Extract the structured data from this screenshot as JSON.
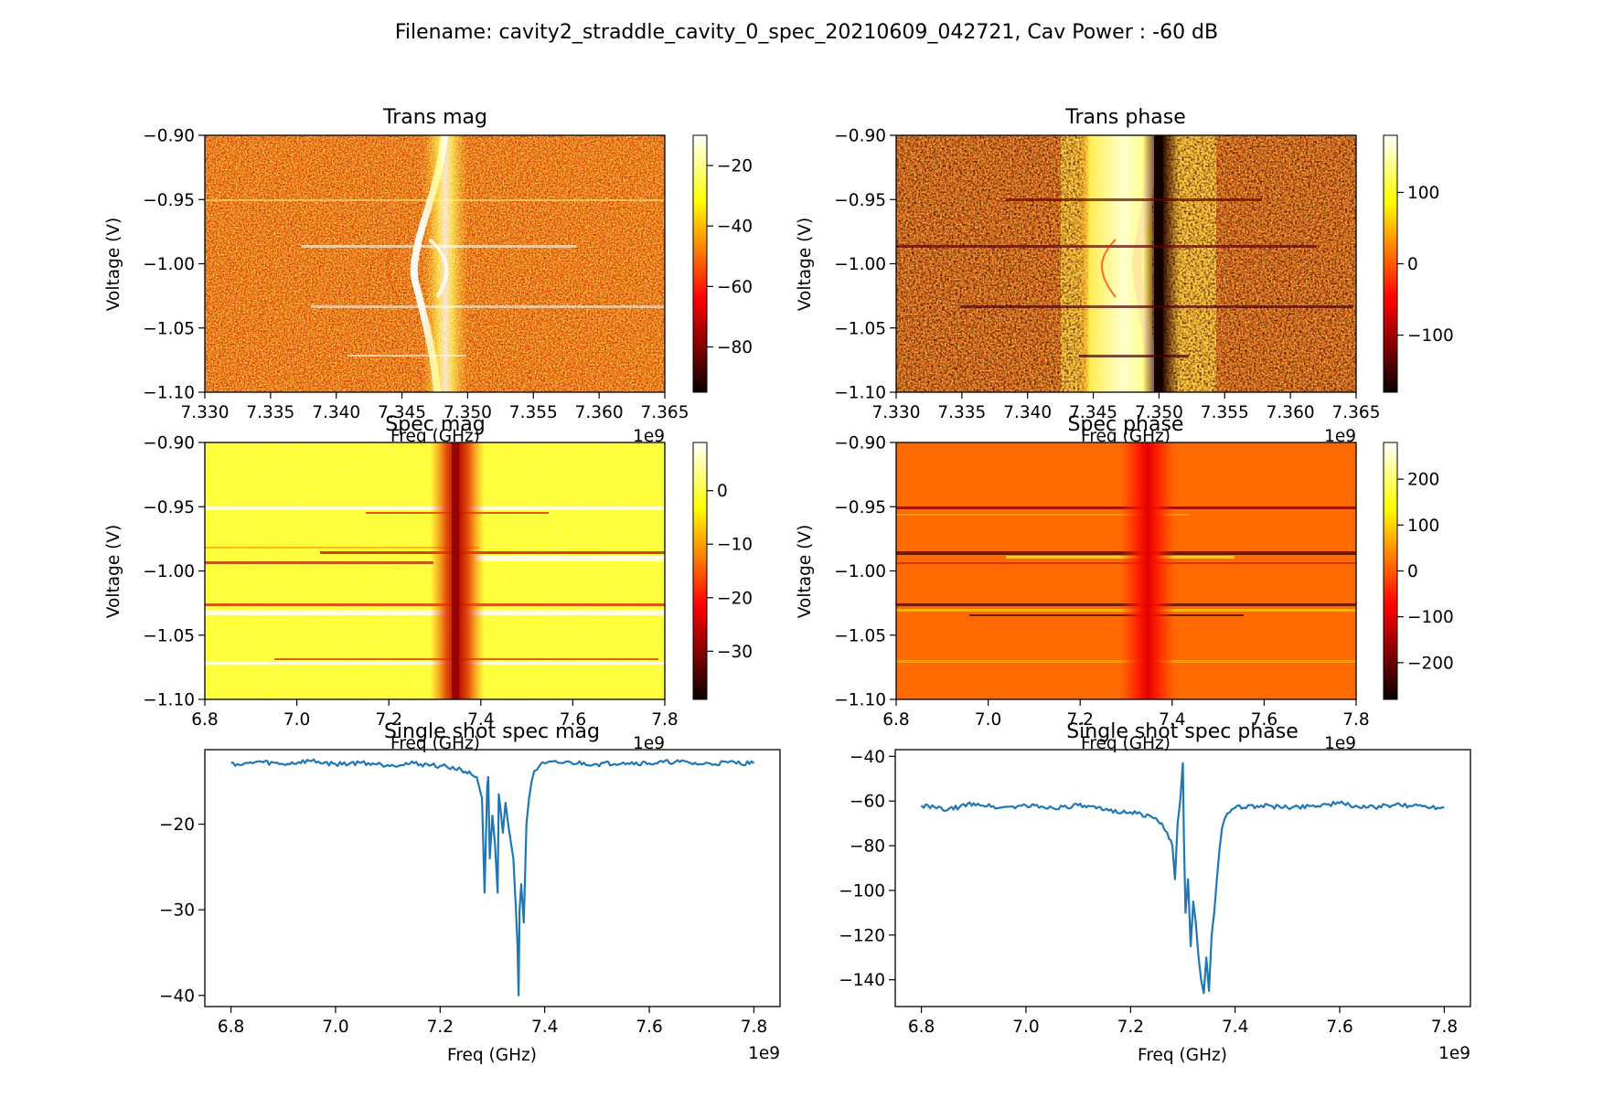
{
  "figure": {
    "suptitle": "Filename: cavity2_straddle_cavity_0_spec_20210609_042721, Cav Power : -60 dB"
  },
  "chart_data": [
    {
      "type": "heatmap",
      "title": "Trans mag",
      "xlabel": "Freq (GHz)",
      "ylabel": "Voltage (V)",
      "x_offset_label": "1e9",
      "xlim": [
        7330000000.0,
        7365000000.0
      ],
      "ylim": [
        -1.1,
        -0.9
      ],
      "xticks": [
        7.33,
        7.335,
        7.34,
        7.345,
        7.35,
        7.355,
        7.36,
        7.365
      ],
      "xtick_labels": [
        "7.330",
        "7.335",
        "7.340",
        "7.345",
        "7.350",
        "7.355",
        "7.360",
        "7.365"
      ],
      "yticks": [
        -0.9,
        -0.95,
        -1.0,
        -1.05,
        -1.1
      ],
      "ytick_labels": [
        "−0.90",
        "−0.95",
        "−1.00",
        "−1.05",
        "−1.10"
      ],
      "colormap": "hot",
      "colorbar": {
        "vmin": -95,
        "vmax": -10,
        "ticks": [
          -20,
          -40,
          -60,
          -80
        ],
        "tick_labels": [
          "−20",
          "−40",
          "−60",
          "−80"
        ]
      },
      "features": {
        "resonance_center_ghz": 7.348,
        "anticrossing_voltages": [
          -0.95,
          -0.987,
          -1.0,
          -1.033,
          -1.072
        ],
        "background": "noisy orange"
      }
    },
    {
      "type": "heatmap",
      "title": "Trans phase",
      "xlabel": "Freq (GHz)",
      "ylabel": "Voltage (V)",
      "x_offset_label": "1e9",
      "xlim": [
        7330000000.0,
        7365000000.0
      ],
      "ylim": [
        -1.1,
        -0.9
      ],
      "xticks": [
        7.33,
        7.335,
        7.34,
        7.345,
        7.35,
        7.355,
        7.36,
        7.365
      ],
      "xtick_labels": [
        "7.330",
        "7.335",
        "7.340",
        "7.345",
        "7.350",
        "7.355",
        "7.360",
        "7.365"
      ],
      "yticks": [
        -0.9,
        -0.95,
        -1.0,
        -1.05,
        -1.1
      ],
      "ytick_labels": [
        "−0.90",
        "−0.95",
        "−1.00",
        "−1.05",
        "−1.10"
      ],
      "colormap": "hot",
      "colorbar": {
        "vmin": -180,
        "vmax": 180,
        "ticks": [
          100,
          0,
          -100
        ],
        "tick_labels": [
          "100",
          "0",
          "−100"
        ]
      },
      "features": {
        "phase_jump_ghz": 7.349,
        "bright_band_ghz": [
          7.344,
          7.349
        ],
        "anticrossing_voltages": [
          -0.95,
          -0.987,
          -1.033,
          -1.072
        ]
      }
    },
    {
      "type": "heatmap",
      "title": "Spec mag",
      "xlabel": "Freq (GHz)",
      "ylabel": "Voltage (V)",
      "x_offset_label": "1e9",
      "xlim": [
        6800000000.0,
        7800000000.0
      ],
      "ylim": [
        -1.1,
        -0.9
      ],
      "xticks": [
        6.8,
        7.0,
        7.2,
        7.4,
        7.6,
        7.8
      ],
      "xtick_labels": [
        "6.8",
        "7.0",
        "7.2",
        "7.4",
        "7.6",
        "7.8"
      ],
      "yticks": [
        -0.9,
        -0.95,
        -1.0,
        -1.05,
        -1.1
      ],
      "ytick_labels": [
        "−0.90",
        "−0.95",
        "−1.00",
        "−1.05",
        "−1.10"
      ],
      "colormap": "hot",
      "colorbar": {
        "vmin": -39,
        "vmax": 9,
        "ticks": [
          0,
          -10,
          -20,
          -30
        ],
        "tick_labels": [
          "0",
          "−10",
          "−20",
          "−30"
        ]
      },
      "features": {
        "line_center_ghz": 7.35,
        "horizontal_streak_voltages": [
          -0.95,
          -0.987,
          -0.995,
          -1.03,
          -1.033,
          -1.072
        ]
      }
    },
    {
      "type": "heatmap",
      "title": "Spec phase",
      "xlabel": "Freq (GHz)",
      "ylabel": "Voltage (V)",
      "x_offset_label": "1e9",
      "xlim": [
        6800000000.0,
        7800000000.0
      ],
      "ylim": [
        -1.1,
        -0.9
      ],
      "xticks": [
        6.8,
        7.0,
        7.2,
        7.4,
        7.6,
        7.8
      ],
      "xtick_labels": [
        "6.8",
        "7.0",
        "7.2",
        "7.4",
        "7.6",
        "7.8"
      ],
      "yticks": [
        -0.9,
        -0.95,
        -1.0,
        -1.05,
        -1.1
      ],
      "ytick_labels": [
        "−0.90",
        "−0.95",
        "−1.00",
        "−1.05",
        "−1.10"
      ],
      "colormap": "hot",
      "colorbar": {
        "vmin": -280,
        "vmax": 280,
        "ticks": [
          200,
          100,
          0,
          -100,
          -200
        ],
        "tick_labels": [
          "200",
          "100",
          "0",
          "−100",
          "−200"
        ]
      },
      "features": {
        "line_center_ghz": 7.34,
        "horizontal_streak_voltages": [
          -0.95,
          -0.987,
          -0.995,
          -1.03,
          -1.035,
          -1.072
        ]
      }
    },
    {
      "type": "line",
      "title": "Single shot spec mag",
      "xlabel": "Freq (GHz)",
      "ylabel": "",
      "x_offset_label": "1e9",
      "xlim": [
        6750000000.0,
        7850000000.0
      ],
      "ylim": [
        -41.3,
        -11.3
      ],
      "xticks": [
        6.8,
        7.0,
        7.2,
        7.4,
        7.6,
        7.8
      ],
      "xtick_labels": [
        "6.8",
        "7.0",
        "7.2",
        "7.4",
        "7.6",
        "7.8"
      ],
      "yticks": [
        -20,
        -30,
        -40
      ],
      "ytick_labels": [
        "−20",
        "−30",
        "−40"
      ],
      "color": "#1f77b4",
      "series": [
        {
          "x": [
            6.8,
            6.82,
            6.85,
            6.9,
            6.95,
            7.0,
            7.05,
            7.1,
            7.15,
            7.2,
            7.24,
            7.26,
            7.27,
            7.28,
            7.285,
            7.29,
            7.292,
            7.295,
            7.3,
            7.305,
            7.31,
            7.312,
            7.315,
            7.32,
            7.325,
            7.33,
            7.335,
            7.34,
            7.345,
            7.348,
            7.35,
            7.352,
            7.355,
            7.36,
            7.365,
            7.37,
            7.375,
            7.38,
            7.39,
            7.4,
            7.45,
            7.5,
            7.55,
            7.6,
            7.65,
            7.7,
            7.75,
            7.8
          ],
          "y": [
            -12.8,
            -13.1,
            -12.7,
            -13.0,
            -12.6,
            -13.0,
            -12.8,
            -13.1,
            -12.9,
            -13.2,
            -13.6,
            -14.2,
            -14.5,
            -17.0,
            -28.0,
            -15.5,
            -14.5,
            -24.0,
            -19.0,
            -22.5,
            -28.0,
            -16.5,
            -18.0,
            -21.0,
            -17.5,
            -20.0,
            -22.0,
            -24.0,
            -30.0,
            -34.0,
            -40.0,
            -30.0,
            -27.0,
            -31.5,
            -20.0,
            -17.0,
            -15.0,
            -13.8,
            -13.2,
            -12.9,
            -12.8,
            -13.0,
            -12.8,
            -12.9,
            -12.7,
            -13.0,
            -12.8,
            -12.9
          ]
        }
      ]
    },
    {
      "type": "line",
      "title": "Single shot spec phase",
      "xlabel": "Freq (GHz)",
      "ylabel": "",
      "x_offset_label": "1e9",
      "xlim": [
        6750000000.0,
        7850000000.0
      ],
      "ylim": [
        -152,
        -37
      ],
      "xticks": [
        6.8,
        7.0,
        7.2,
        7.4,
        7.6,
        7.8
      ],
      "xtick_labels": [
        "6.8",
        "7.0",
        "7.2",
        "7.4",
        "7.6",
        "7.8"
      ],
      "yticks": [
        -40,
        -60,
        -80,
        -100,
        -120,
        -140
      ],
      "ytick_labels": [
        "−40",
        "−60",
        "−80",
        "−100",
        "−120",
        "−140"
      ],
      "color": "#1f77b4",
      "series": [
        {
          "x": [
            6.8,
            6.85,
            6.9,
            6.95,
            7.0,
            7.05,
            7.1,
            7.15,
            7.2,
            7.24,
            7.26,
            7.27,
            7.28,
            7.285,
            7.29,
            7.295,
            7.3,
            7.302,
            7.305,
            7.31,
            7.315,
            7.32,
            7.325,
            7.33,
            7.335,
            7.34,
            7.345,
            7.35,
            7.355,
            7.36,
            7.365,
            7.37,
            7.375,
            7.38,
            7.39,
            7.4,
            7.45,
            7.5,
            7.55,
            7.6,
            7.65,
            7.7,
            7.75,
            7.8
          ],
          "y": [
            -62,
            -64,
            -61,
            -63,
            -62,
            -63,
            -62,
            -64,
            -65,
            -67,
            -70,
            -74,
            -80,
            -95,
            -70,
            -60,
            -43,
            -75,
            -110,
            -95,
            -125,
            -105,
            -115,
            -130,
            -140,
            -146,
            -130,
            -145,
            -120,
            -110,
            -95,
            -82,
            -72,
            -68,
            -65,
            -63,
            -62,
            -63,
            -62,
            -61,
            -63,
            -62,
            -62,
            -63
          ]
        }
      ]
    }
  ]
}
